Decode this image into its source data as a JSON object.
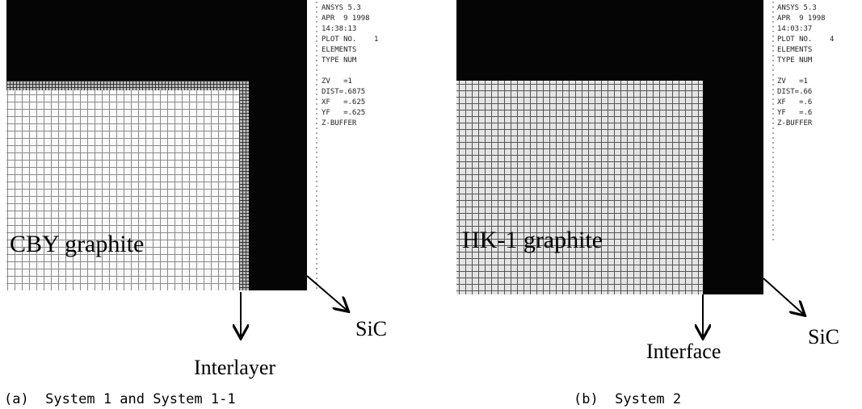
{
  "panels": [
    {
      "caption": "(a)  System 1 and System 1-1",
      "material_label": "CBY graphite",
      "sic_label": "SiC",
      "boundary_label": "Interlayer",
      "info_top": [
        "ANSYS 5.3",
        "APR  9 1998",
        "14:38:13",
        "PLOT NO.    1",
        "ELEMENTS",
        "TYPE NUM"
      ],
      "info_bottom": [
        "ZV   =1",
        "DIST=.6875",
        "XF   =.625",
        "YF   =.625",
        "Z-BUFFER"
      ]
    },
    {
      "caption": "(b)  System 2",
      "material_label": "HK-1 graphite",
      "sic_label": "SiC",
      "boundary_label": "Interface",
      "info_top": [
        "ANSYS 5.3",
        "APR  9 1998",
        "14:03:37",
        "PLOT NO.    4",
        "ELEMENTS",
        "TYPE NUM"
      ],
      "info_bottom": [
        "ZV   =1",
        "DIST=.66",
        "XF   =.6",
        "YF   =.6",
        "Z-BUFFER"
      ]
    }
  ]
}
